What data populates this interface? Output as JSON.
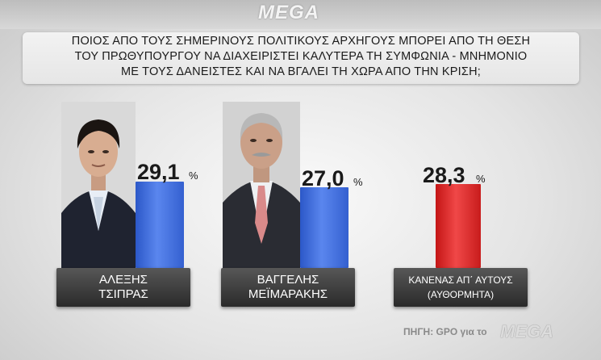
{
  "header": {
    "logo_text": "MEGA"
  },
  "question": {
    "line1": "ΠΟΙΟΣ ΑΠΟ ΤΟΥΣ ΣΗΜΕΡΙΝΟΥΣ ΠΟΛΙΤΙΚΟΥΣ ΑΡΧΗΓΟΥΣ ΜΠΟΡΕΙ ΑΠΟ ΤΗ ΘΕΣΗ",
    "line2": "ΤΟΥ ΠΡΩΘΥΠΟΥΡΓΟΥ ΝΑ ΔΙΑΧΕΙΡΙΣΤΕΙ ΚΑΛΥΤΕΡΑ ΤΗ ΣΥΜΦΩΝΙΑ - ΜΝΗΜΟΝΙΟ",
    "line3": "ΜΕ ΤΟΥΣ ΔΑΝΕΙΣΤΕΣ ΚΑΙ ΝΑ ΒΓΑΛΕΙ ΤΗ ΧΩΡΑ ΑΠΟ ΤΗΝ ΚΡΙΣΗ;"
  },
  "chart_data": {
    "type": "bar",
    "title": "ΠΟΙΟΣ ΑΠΟ ΤΟΥΣ ΣΗΜΕΡΙΝΟΥΣ ΠΟΛΙΤΙΚΟΥΣ ΑΡΧΗΓΟΥΣ ΜΠΟΡΕΙ ΑΠΟ ΤΗ ΘΕΣΗ ΤΟΥ ΠΡΩΘΥΠΟΥΡΓΟΥ ΝΑ ΔΙΑΧΕΙΡΙΣΤΕΙ ΚΑΛΥΤΕΡΑ ΤΗ ΣΥΜΦΩΝΙΑ - ΜΝΗΜΟΝΙΟ ΜΕ ΤΟΥΣ ΔΑΝΕΙΣΤΕΣ ΚΑΙ ΝΑ ΒΓΑΛΕΙ ΤΗ ΧΩΡΑ ΑΠΟ ΤΗΝ ΚΡΙΣΗ;",
    "categories": [
      "ΑΛΕΞΗΣ ΤΣΙΠΡΑΣ",
      "ΒΑΓΓΕΛΗΣ ΜΕΪΜΑΡΑΚΗΣ",
      "ΚΑΝΕΝΑΣ ΑΠ΄ ΑΥΤΟΥΣ (ΑΥΘΟΡΜΗΤΑ)"
    ],
    "values": [
      29.1,
      27.0,
      28.3
    ],
    "value_labels": [
      "29,1",
      "27,0",
      "28,3"
    ],
    "unit": "%",
    "colors": [
      "#3a66d8",
      "#3a66d8",
      "#e03030"
    ],
    "ylim": [
      0,
      32
    ]
  },
  "labels": [
    {
      "line1": "ΑΛΕΞΗΣ",
      "line2": "ΤΣΙΠΡΑΣ"
    },
    {
      "line1": "ΒΑΓΓΕΛΗΣ",
      "line2": "ΜΕΪΜΑΡΑΚΗΣ"
    },
    {
      "line1": "ΚΑΝΕΝΑΣ ΑΠ΄ ΑΥΤΟΥΣ",
      "line2": "(ΑΥΘΟΡΜΗΤΑ)"
    }
  ],
  "footer": {
    "source_text": "ΠΗΓΗ: GPO για το",
    "source_logo": "MEGA"
  }
}
